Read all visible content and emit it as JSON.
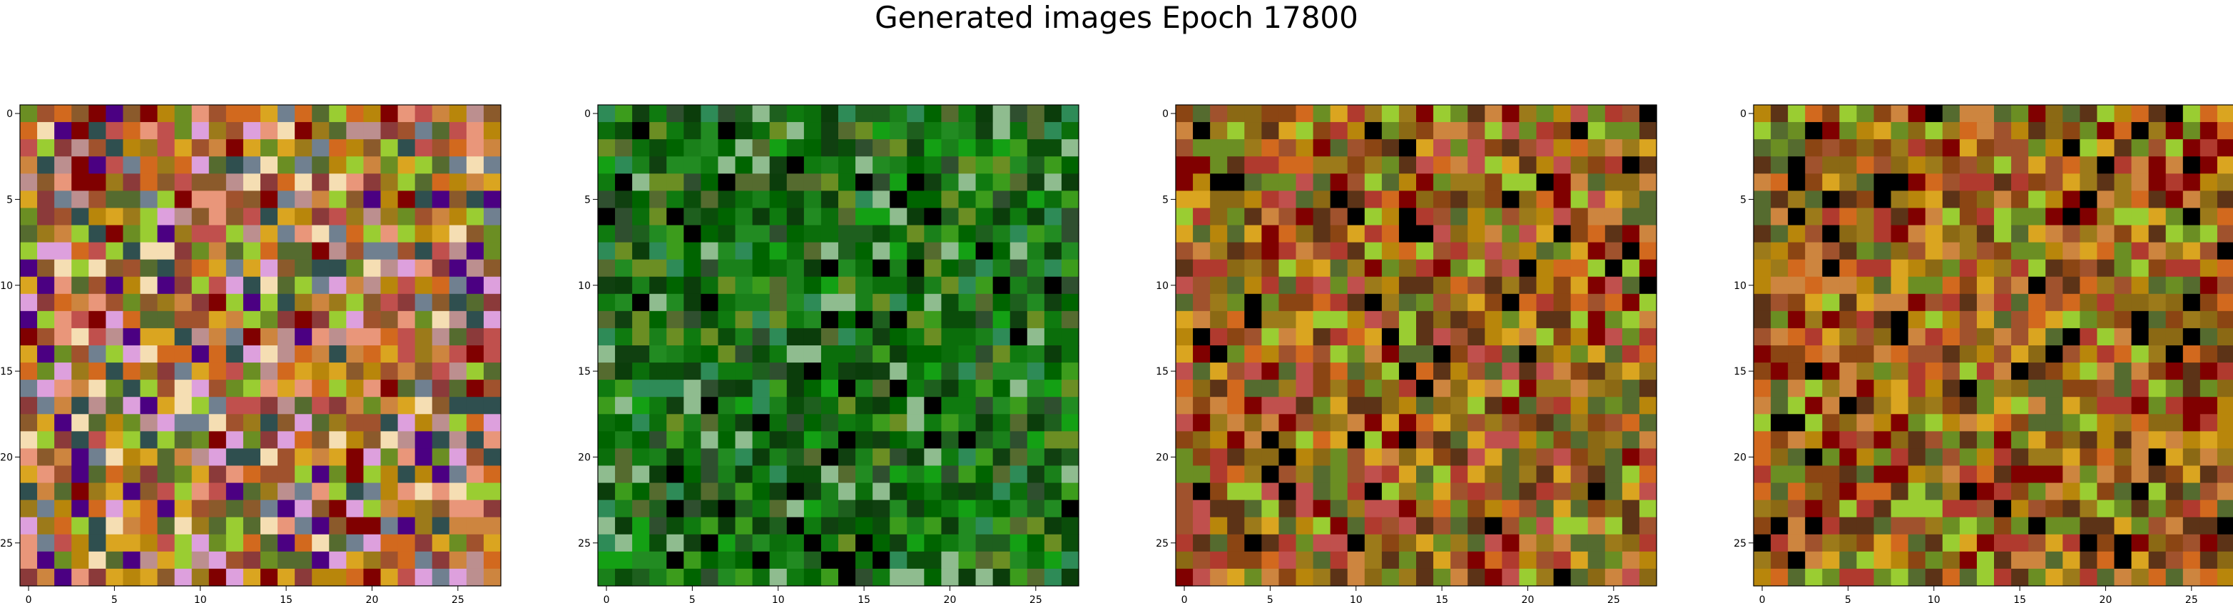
{
  "figure": {
    "title": "Generated images Epoch 17800"
  },
  "chart_data": [
    {
      "type": "heatmap",
      "title": "",
      "xlabel": "",
      "ylabel": "",
      "xlim": [
        -0.5,
        27.5
      ],
      "ylim": [
        27.5,
        -0.5
      ],
      "xticks": [
        0,
        5,
        10,
        15,
        20,
        25
      ],
      "yticks": [
        0,
        5,
        10,
        15,
        20,
        25
      ],
      "palette": [
        "#c0504d",
        "#8b5a2b",
        "#b8860b",
        "#9c7a1a",
        "#6b8e23",
        "#a0522d",
        "#cd853f",
        "#d2691e",
        "#8b3a3a",
        "#556b2f",
        "#daa520",
        "#bc8f8f",
        "#708090",
        "#9acd32",
        "#800000",
        "#e9967a",
        "#4b0082",
        "#dda0dd",
        "#f5deb3",
        "#2f4f4f"
      ],
      "grid_size": 28,
      "seed": 11
    },
    {
      "type": "heatmap",
      "title": "",
      "xlabel": "",
      "ylabel": "",
      "xlim": [
        -0.5,
        27.5
      ],
      "ylim": [
        27.5,
        -0.5
      ],
      "xticks": [
        0,
        5,
        10,
        15,
        20,
        25
      ],
      "yticks": [
        0,
        5,
        10,
        15,
        20,
        25
      ],
      "palette": [
        "#006400",
        "#0b6e0b",
        "#228b22",
        "#1e5f1e",
        "#2e8b57",
        "#0a4d0a",
        "#3c9c1c",
        "#556b2f",
        "#0f7a0f",
        "#104010",
        "#6b8e23",
        "#1a801a",
        "#2f4f2f",
        "#0b3d0b",
        "#000000",
        "#8fbc8f",
        "#14a014"
      ],
      "grid_size": 28,
      "seed": 23
    },
    {
      "type": "heatmap",
      "title": "",
      "xlabel": "",
      "ylabel": "",
      "xlim": [
        -0.5,
        27.5
      ],
      "ylim": [
        27.5,
        -0.5
      ],
      "xticks": [
        0,
        5,
        10,
        15,
        20,
        25
      ],
      "yticks": [
        0,
        5,
        10,
        15,
        20,
        25
      ],
      "palette": [
        "#8b6914",
        "#9c7a1a",
        "#a0522d",
        "#b8860b",
        "#8b4513",
        "#6b8e23",
        "#cd853f",
        "#800000",
        "#d2691e",
        "#b03a2e",
        "#556b2f",
        "#daa520",
        "#9acd32",
        "#5c3317",
        "#c0504d",
        "#000000"
      ],
      "grid_size": 28,
      "seed": 37
    },
    {
      "type": "heatmap",
      "title": "",
      "xlabel": "",
      "ylabel": "",
      "xlim": [
        -0.5,
        27.5
      ],
      "ylim": [
        27.5,
        -0.5
      ],
      "xticks": [
        0,
        5,
        10,
        15,
        20,
        25
      ],
      "yticks": [
        0,
        5,
        10,
        15,
        20,
        25
      ],
      "palette": [
        "#9c7a1a",
        "#8b6914",
        "#a0522d",
        "#b8860b",
        "#6b8e23",
        "#8b4513",
        "#cd853f",
        "#800000",
        "#d2691e",
        "#556b2f",
        "#daa520",
        "#9acd32",
        "#b03a2e",
        "#5c3317",
        "#000000"
      ],
      "grid_size": 28,
      "seed": 51
    }
  ]
}
